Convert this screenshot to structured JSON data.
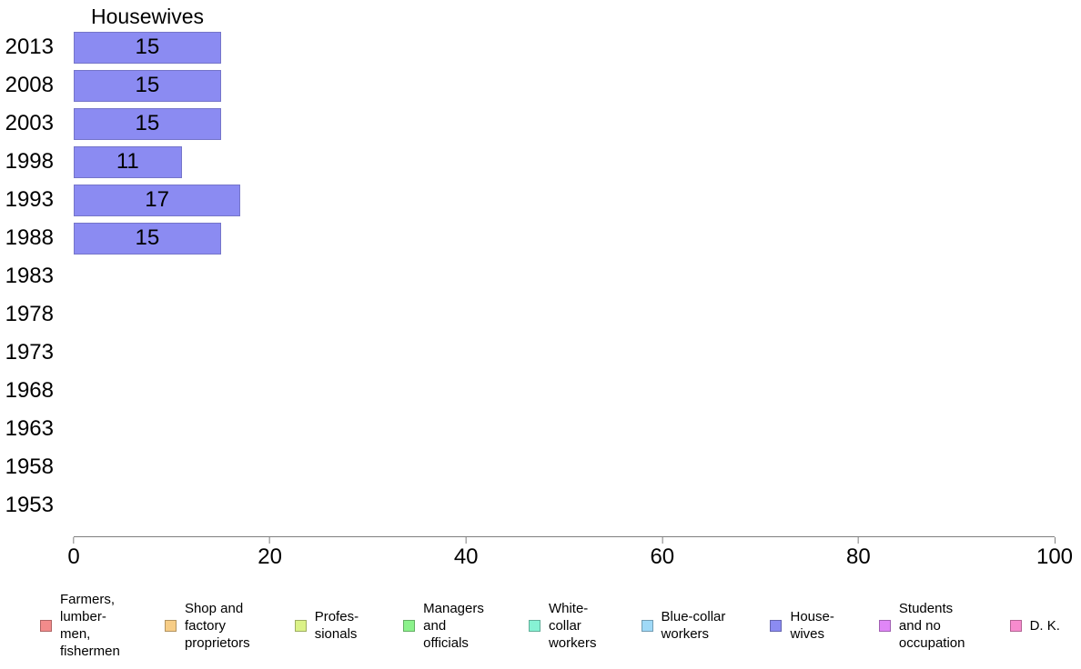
{
  "chart_data": {
    "type": "bar",
    "orientation": "horizontal",
    "title": "Housewives",
    "categories": [
      "2013",
      "2008",
      "2003",
      "1998",
      "1993",
      "1988",
      "1983",
      "1978",
      "1973",
      "1968",
      "1963",
      "1958",
      "1953"
    ],
    "values": [
      15,
      15,
      15,
      11,
      17,
      15,
      null,
      null,
      null,
      null,
      null,
      null,
      null
    ],
    "xlabel": "",
    "ylabel": "",
    "xlim": [
      0,
      100
    ],
    "xticks": [
      0,
      20,
      40,
      60,
      80,
      100
    ],
    "grid": false,
    "value_label_position": "inside-center",
    "legend_position": "bottom",
    "colors": {
      "bar_fill": "#8b8bf2",
      "bar_border": "#7575c9",
      "axis": "#7f7f7f",
      "text": "#000000",
      "background": "#ffffff"
    }
  },
  "legend": {
    "items": [
      {
        "label": "Farmers,\nlumber-\nmen,\nfishermen",
        "color": "#f28b8b"
      },
      {
        "label": "Shop and\nfactory\nproprietors",
        "color": "#f7cd86"
      },
      {
        "label": "Profes-\nsionals",
        "color": "#dbf287"
      },
      {
        "label": "Managers\nand\nofficials",
        "color": "#8bf28b"
      },
      {
        "label": "White-\ncollar\nworkers",
        "color": "#86f2d4"
      },
      {
        "label": "Blue-collar\nworkers",
        "color": "#9fd9f7"
      },
      {
        "label": "House-\nwives",
        "color": "#8b8bf2"
      },
      {
        "label": "Students\nand no\noccupation",
        "color": "#e086f7"
      },
      {
        "label": "D. K.",
        "color": "#f78bce"
      }
    ]
  }
}
